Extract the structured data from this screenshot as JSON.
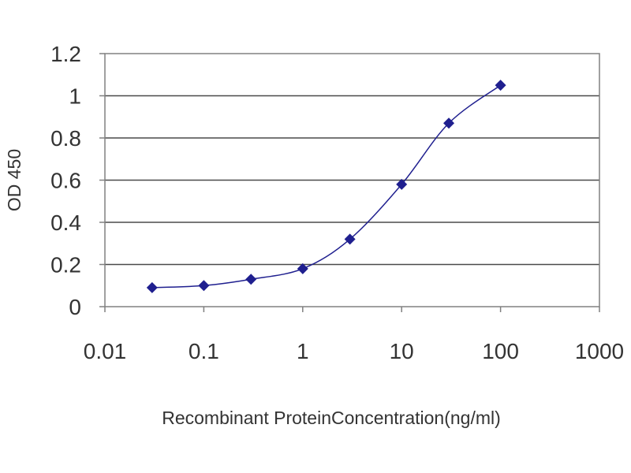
{
  "chart_data": {
    "type": "scatter",
    "title": "",
    "xlabel": "Recombinant ProteinConcentration(ng/ml)",
    "ylabel": "OD 450",
    "x_scale": "log",
    "xlim": [
      0.01,
      1000
    ],
    "ylim": [
      0,
      1.2
    ],
    "x_ticks": [
      "0.01",
      "0.1",
      "1",
      "10",
      "100",
      "1000"
    ],
    "y_ticks": [
      "0",
      "0.2",
      "0.4",
      "0.6",
      "0.8",
      "1",
      "1.2"
    ],
    "grid": "horizontal",
    "legend": "none",
    "series": [
      {
        "x": [
          0.03,
          0.1,
          0.3,
          1,
          3,
          10,
          30,
          100
        ],
        "y": [
          0.09,
          0.1,
          0.13,
          0.18,
          0.32,
          0.58,
          0.87,
          1.05
        ],
        "color": "#1f1f8f",
        "marker": "diamond",
        "line": "smooth"
      }
    ]
  }
}
